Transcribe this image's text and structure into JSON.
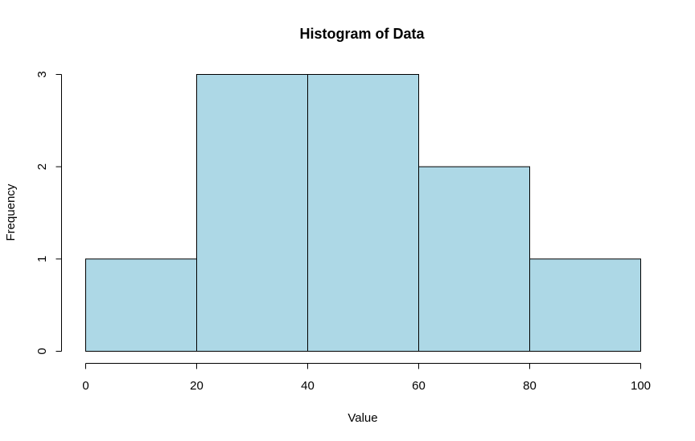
{
  "chart_data": {
    "type": "bar",
    "title": "Histogram of Data",
    "xlabel": "Value",
    "ylabel": "Frequency",
    "bins": [
      {
        "start": 0,
        "end": 20,
        "count": 1
      },
      {
        "start": 20,
        "end": 40,
        "count": 3
      },
      {
        "start": 40,
        "end": 60,
        "count": 3
      },
      {
        "start": 60,
        "end": 80,
        "count": 2
      },
      {
        "start": 80,
        "end": 100,
        "count": 1
      }
    ],
    "xlim": [
      0,
      100
    ],
    "ylim": [
      0,
      3
    ],
    "x_ticks": [
      "0",
      "20",
      "40",
      "60",
      "80",
      "100"
    ],
    "y_ticks": [
      "0",
      "1",
      "2",
      "3"
    ],
    "bar_color": "#ADD8E6",
    "grid": false,
    "legend": "none"
  }
}
